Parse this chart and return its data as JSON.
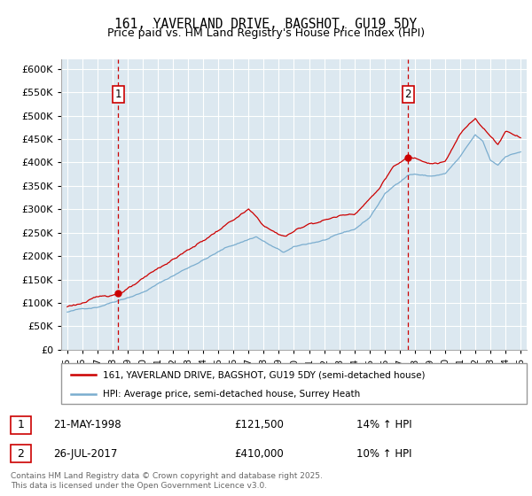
{
  "title": "161, YAVERLAND DRIVE, BAGSHOT, GU19 5DY",
  "subtitle": "Price paid vs. HM Land Registry's House Price Index (HPI)",
  "legend_line1": "161, YAVERLAND DRIVE, BAGSHOT, GU19 5DY (semi-detached house)",
  "legend_line2": "HPI: Average price, semi-detached house, Surrey Heath",
  "transaction1_date": "21-MAY-1998",
  "transaction1_price": "£121,500",
  "transaction1_hpi": "14% ↑ HPI",
  "transaction2_date": "26-JUL-2017",
  "transaction2_price": "£410,000",
  "transaction2_hpi": "10% ↑ HPI",
  "copyright": "Contains HM Land Registry data © Crown copyright and database right 2025.\nThis data is licensed under the Open Government Licence v3.0.",
  "ylim": [
    0,
    620000
  ],
  "yticks": [
    0,
    50000,
    100000,
    150000,
    200000,
    250000,
    300000,
    350000,
    400000,
    450000,
    500000,
    550000,
    600000
  ],
  "price_color": "#cc0000",
  "hpi_color": "#7aadcf",
  "grid_color": "#cccccc",
  "vline_color": "#cc0000",
  "marker1_x": 1998.38,
  "marker2_x": 2017.56,
  "chart_bg": "#dce8f0",
  "marker1_price": 121500,
  "marker2_price": 410000
}
